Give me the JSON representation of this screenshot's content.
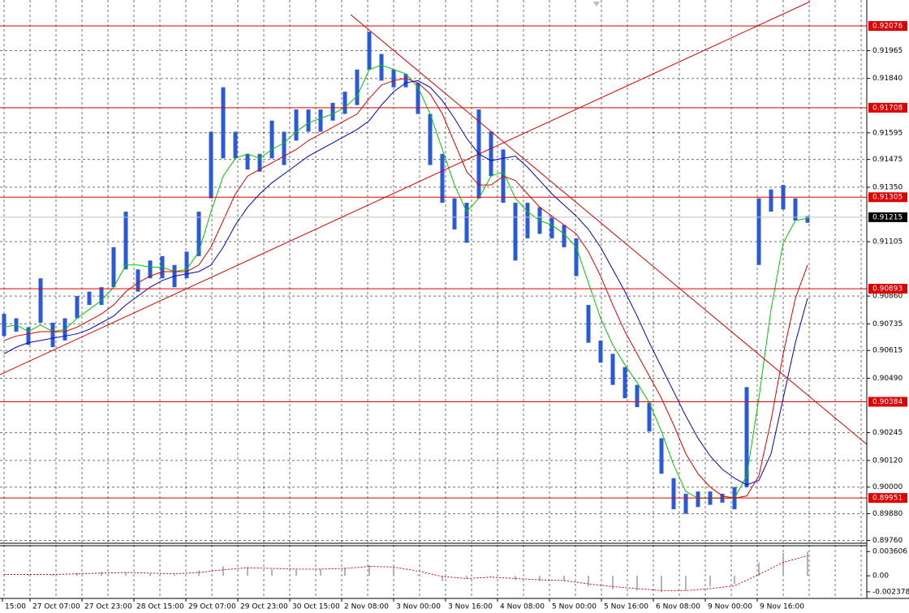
{
  "chart_data": [
    {
      "type": "hilo",
      "color": "#2a5ad8",
      "ylim": [
        0.89747,
        0.92193
      ],
      "yticks": [
        0.91965,
        {
          "value": 0.9184,
          "label": "0.91840"
        },
        0.91595,
        0.91475,
        {
          "value": 0.9135,
          "label": "0.91350"
        },
        0.91105,
        {
          "value": 0.9086,
          "label": "0.90860"
        },
        0.90735,
        0.90615,
        {
          "value": 0.9049,
          "label": "0.90490"
        },
        0.90245,
        {
          "value": 0.9012,
          "label": "0.90120"
        },
        {
          "value": 0.9,
          "label": "0.90000"
        },
        {
          "value": 0.8988,
          "label": "0.89880"
        },
        {
          "value": 0.8976,
          "label": "0.89760"
        }
      ],
      "xlabels": [
        "15:00",
        "27 Oct 07:00",
        "27 Oct 23:00",
        "28 Oct 15:00",
        "29 Oct 07:00",
        "29 Oct 23:00",
        "30 Oct 15:00",
        "2 Nov 08:00",
        "3 Nov 00:00",
        "3 Nov 16:00",
        "4 Nov 08:00",
        "5 Nov 00:00",
        "5 Nov 16:00",
        "6 Nov 08:00",
        "9 Nov 00:00",
        "9 Nov 16:00"
      ],
      "low": [
        0.9068,
        0.907,
        0.9064,
        0.9074,
        0.9063,
        0.9066,
        0.9076,
        0.9082,
        0.9082,
        0.909,
        0.9098,
        0.9088,
        0.9094,
        0.9094,
        0.909,
        0.9094,
        0.9104,
        0.913,
        0.9148,
        0.9148,
        0.9143,
        0.9142,
        0.9148,
        0.9145,
        0.9156,
        0.916,
        0.916,
        0.9165,
        0.9168,
        0.9172,
        0.9188,
        0.9183,
        0.918,
        0.918,
        0.9168,
        0.9145,
        0.9128,
        0.9116,
        0.911,
        0.913,
        0.914,
        0.9128,
        0.9102,
        0.9112,
        0.9114,
        0.9112,
        0.9108,
        0.9095,
        0.9065,
        0.9056,
        0.9046,
        0.904,
        0.9036,
        0.9025,
        0.9006,
        0.899,
        0.8988,
        0.8991,
        0.8992,
        0.8993,
        0.899,
        0.9,
        0.91,
        0.9124,
        0.9125,
        0.912,
        0.9119
      ],
      "high": [
        0.9078,
        0.9076,
        0.9072,
        0.9094,
        0.9074,
        0.9076,
        0.9086,
        0.9088,
        0.909,
        0.9108,
        0.9124,
        0.9098,
        0.9102,
        0.9104,
        0.91,
        0.9106,
        0.9124,
        0.916,
        0.918,
        0.916,
        0.915,
        0.915,
        0.9165,
        0.916,
        0.917,
        0.917,
        0.917,
        0.9173,
        0.9178,
        0.9188,
        0.9205,
        0.9195,
        0.9188,
        0.9186,
        0.9182,
        0.9168,
        0.915,
        0.913,
        0.9128,
        0.917,
        0.916,
        0.9152,
        0.9128,
        0.9128,
        0.9126,
        0.9122,
        0.9118,
        0.9112,
        0.9082,
        0.9066,
        0.906,
        0.9054,
        0.9046,
        0.9038,
        0.9022,
        0.9004,
        0.8997,
        0.8998,
        0.8998,
        0.8997,
        0.9,
        0.9045,
        0.913,
        0.9134,
        0.9136,
        0.913,
        0.9122
      ],
      "lines": [
        {
          "color": "#00c800",
          "values": [
            0.9072,
            0.9073,
            0.907,
            0.9073,
            0.907,
            0.9071,
            0.9076,
            0.908,
            0.9084,
            0.909,
            0.91,
            0.91,
            0.9099,
            0.9099,
            0.9097,
            0.9098,
            0.9106,
            0.9124,
            0.914,
            0.9148,
            0.915,
            0.9148,
            0.9152,
            0.9155,
            0.916,
            0.9164,
            0.9166,
            0.9168,
            0.9171,
            0.9176,
            0.9188,
            0.919,
            0.9188,
            0.9186,
            0.918,
            0.9168,
            0.9152,
            0.9136,
            0.9124,
            0.913,
            0.914,
            0.9142,
            0.913,
            0.9124,
            0.912,
            0.9118,
            0.9114,
            0.9108,
            0.9092,
            0.9076,
            0.9064,
            0.9055,
            0.9047,
            0.9038,
            0.9025,
            0.901,
            0.8998,
            0.8995,
            0.8995,
            0.8995,
            0.8995,
            0.9005,
            0.904,
            0.908,
            0.911,
            0.912,
            0.9121
          ]
        },
        {
          "color": "#e00000",
          "values": [
            0.9066,
            0.9068,
            0.9069,
            0.907,
            0.907,
            0.907,
            0.9072,
            0.9075,
            0.9078,
            0.9082,
            0.9088,
            0.9092,
            0.9095,
            0.9097,
            0.9097,
            0.9097,
            0.91,
            0.9108,
            0.912,
            0.9132,
            0.914,
            0.9143,
            0.9146,
            0.9149,
            0.9152,
            0.9156,
            0.9159,
            0.9162,
            0.9165,
            0.9168,
            0.9175,
            0.9181,
            0.9183,
            0.9184,
            0.9182,
            0.9177,
            0.9168,
            0.9155,
            0.9142,
            0.9136,
            0.9136,
            0.914,
            0.9138,
            0.9132,
            0.9126,
            0.9122,
            0.9118,
            0.9114,
            0.9106,
            0.9095,
            0.9082,
            0.907,
            0.906,
            0.905,
            0.904,
            0.9028,
            0.9015,
            0.9006,
            0.9,
            0.8996,
            0.8995,
            0.8996,
            0.9005,
            0.903,
            0.906,
            0.9085,
            0.91
          ]
        },
        {
          "color": "#0000c8",
          "values": [
            0.906,
            0.9063,
            0.9065,
            0.9066,
            0.9067,
            0.9068,
            0.9069,
            0.9071,
            0.9074,
            0.9077,
            0.9082,
            0.9086,
            0.909,
            0.9093,
            0.9095,
            0.9096,
            0.9097,
            0.91,
            0.9108,
            0.9118,
            0.9126,
            0.9132,
            0.9137,
            0.9141,
            0.9145,
            0.9149,
            0.9152,
            0.9155,
            0.9158,
            0.9161,
            0.9165,
            0.9172,
            0.9178,
            0.9182,
            0.9183,
            0.918,
            0.9174,
            0.9166,
            0.9157,
            0.915,
            0.9147,
            0.9148,
            0.9149,
            0.9144,
            0.9138,
            0.9132,
            0.9127,
            0.9122,
            0.9116,
            0.9108,
            0.9098,
            0.9088,
            0.9077,
            0.9065,
            0.9054,
            0.9043,
            0.9032,
            0.9022,
            0.9014,
            0.9008,
            0.9004,
            0.9001,
            0.9003,
            0.9015,
            0.904,
            0.9065,
            0.9085
          ]
        }
      ],
      "levels": [
        0.92076,
        0.91708,
        0.91305,
        0.90893,
        0.90384,
        0.89951
      ],
      "level_color": "#e00000",
      "current_price": 0.91215
    },
    {
      "type": "histogram",
      "color": "#b4b4b4",
      "signal_color": "#e00000",
      "ylim": [
        -0.00336,
        0.00448
      ],
      "yticks": [
        0.003606,
        {
          "value": 0,
          "label": "0.00"
        },
        -0.002378
      ],
      "values": [
        0.0002,
        0.0001,
        0.0002,
        0.0004,
        0.0006,
        0.0005,
        0.0003,
        0.0002,
        0.0008,
        0.0014,
        0.0013,
        0.001,
        0.0009,
        0.001,
        0.0012,
        0.0016,
        0.0012,
        0.0002,
        -0.0008,
        -0.0004,
        0.0,
        -0.0006,
        -0.0008,
        -0.0008,
        -0.0016,
        -0.002,
        -0.0022,
        -0.0024,
        -0.0022,
        -0.0016,
        -0.0012,
        0.002,
        0.0034,
        0.0036
      ],
      "signal": [
        0.0002,
        0.0002,
        0.0002,
        0.0003,
        0.0004,
        0.0005,
        0.0004,
        0.0003,
        0.0005,
        0.0009,
        0.0012,
        0.0011,
        0.001,
        0.001,
        0.0011,
        0.0014,
        0.0013,
        0.0007,
        -0.0001,
        -0.0004,
        -0.0002,
        -0.0004,
        -0.0006,
        -0.0007,
        -0.0012,
        -0.0016,
        -0.0019,
        -0.0022,
        -0.0022,
        -0.0019,
        -0.0015,
        0.0002,
        0.002,
        0.003
      ]
    }
  ]
}
